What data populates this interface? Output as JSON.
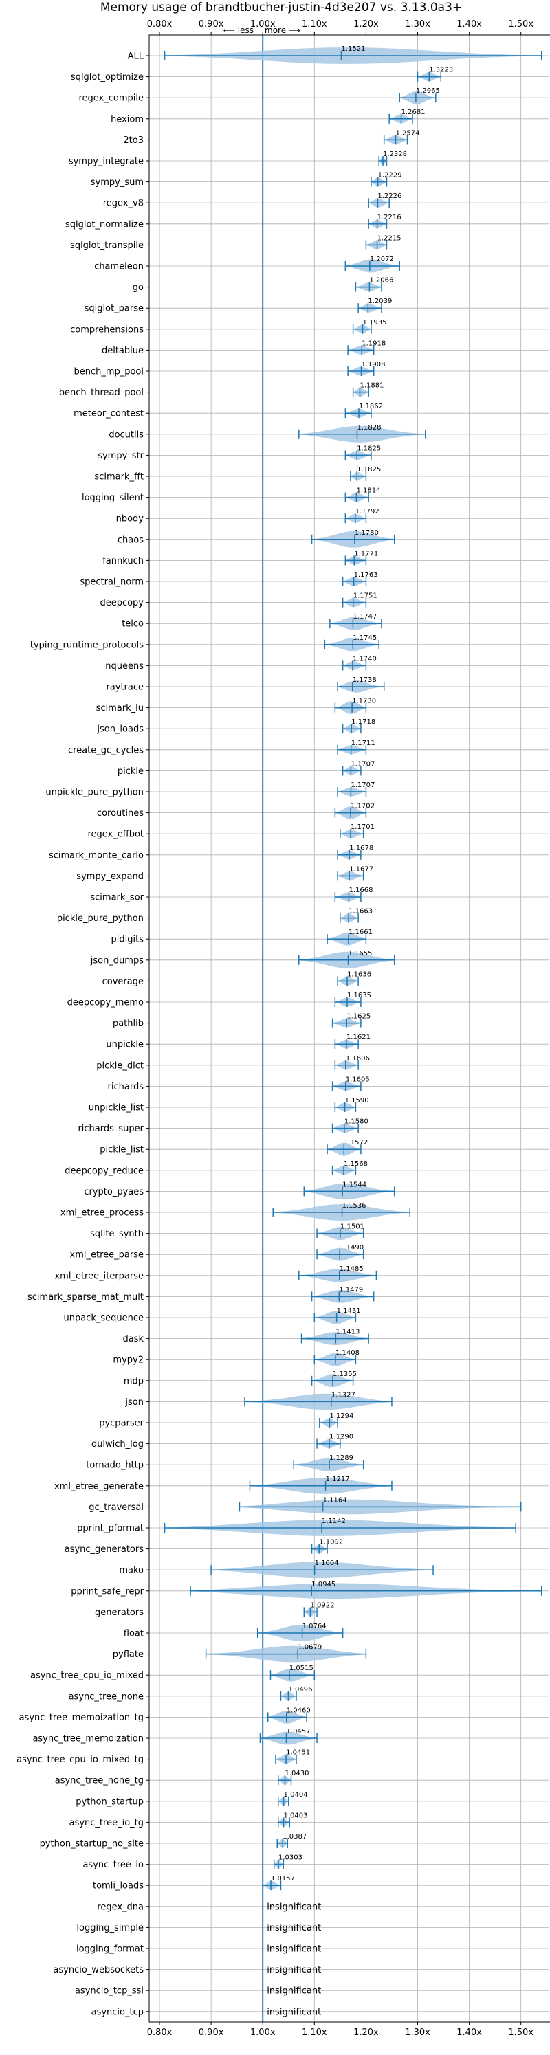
{
  "chart_data": {
    "type": "violin",
    "title": "Memory usage of brandtbucher-justin-4d3e207 vs. 3.13.0a3+",
    "direction_less": "⟵ less",
    "direction_more": "more ⟶",
    "xlim": [
      0.78,
      1.555
    ],
    "xticks": [
      0.8,
      0.9,
      1.0,
      1.1,
      1.2,
      1.3,
      1.4,
      1.5
    ],
    "xtick_labels": [
      "0.80x",
      "0.90x",
      "1.00x",
      "1.10x",
      "1.20x",
      "1.30x",
      "1.40x",
      "1.50x"
    ],
    "reference_line": 1.0,
    "grid": true,
    "insignificant_label": "insignificant",
    "colors": {
      "violin": "#a6c8e4",
      "line": "#1f77b4",
      "grid": "#b0b0b0",
      "text": "#000000"
    },
    "rows": [
      {
        "name": "ALL",
        "value": 1.1521,
        "label": "1.1521",
        "min": 0.81,
        "max": 1.54
      },
      {
        "name": "sqlglot_optimize",
        "value": 1.3223,
        "label": "1.3223",
        "min": 1.3,
        "max": 1.345
      },
      {
        "name": "regex_compile",
        "value": 1.2965,
        "label": "1.2965",
        "min": 1.265,
        "max": 1.335
      },
      {
        "name": "hexiom",
        "value": 1.2681,
        "label": "1.2681",
        "min": 1.245,
        "max": 1.29
      },
      {
        "name": "2to3",
        "value": 1.2574,
        "label": "1.2574",
        "min": 1.235,
        "max": 1.28
      },
      {
        "name": "sympy_integrate",
        "value": 1.2328,
        "label": "1.2328",
        "min": 1.225,
        "max": 1.24
      },
      {
        "name": "sympy_sum",
        "value": 1.2229,
        "label": "1.2229",
        "min": 1.21,
        "max": 1.24
      },
      {
        "name": "regex_v8",
        "value": 1.2226,
        "label": "1.2226",
        "min": 1.205,
        "max": 1.245
      },
      {
        "name": "sqlglot_normalize",
        "value": 1.2216,
        "label": "1.2216",
        "min": 1.205,
        "max": 1.24
      },
      {
        "name": "sqlglot_transpile",
        "value": 1.2215,
        "label": "1.2215",
        "min": 1.2,
        "max": 1.24
      },
      {
        "name": "chameleon",
        "value": 1.2072,
        "label": "1.2072",
        "min": 1.16,
        "max": 1.265
      },
      {
        "name": "go",
        "value": 1.2066,
        "label": "1.2066",
        "min": 1.18,
        "max": 1.23
      },
      {
        "name": "sqlglot_parse",
        "value": 1.2039,
        "label": "1.2039",
        "min": 1.185,
        "max": 1.23
      },
      {
        "name": "comprehensions",
        "value": 1.1935,
        "label": "1.1935",
        "min": 1.175,
        "max": 1.21
      },
      {
        "name": "deltablue",
        "value": 1.1918,
        "label": "1.1918",
        "min": 1.165,
        "max": 1.215
      },
      {
        "name": "bench_mp_pool",
        "value": 1.1908,
        "label": "1.1908",
        "min": 1.165,
        "max": 1.215
      },
      {
        "name": "bench_thread_pool",
        "value": 1.1881,
        "label": "1.1881",
        "min": 1.175,
        "max": 1.205
      },
      {
        "name": "meteor_contest",
        "value": 1.1862,
        "label": "1.1862",
        "min": 1.16,
        "max": 1.21
      },
      {
        "name": "docutils",
        "value": 1.1828,
        "label": "1.1828",
        "min": 1.07,
        "max": 1.315
      },
      {
        "name": "sympy_str",
        "value": 1.1825,
        "label": "1.1825",
        "min": 1.16,
        "max": 1.21
      },
      {
        "name": "scimark_fft",
        "value": 1.1825,
        "label": "1.1825",
        "min": 1.17,
        "max": 1.2
      },
      {
        "name": "logging_silent",
        "value": 1.1814,
        "label": "1.1814",
        "min": 1.16,
        "max": 1.205
      },
      {
        "name": "nbody",
        "value": 1.1792,
        "label": "1.1792",
        "min": 1.16,
        "max": 1.2
      },
      {
        "name": "chaos",
        "value": 1.178,
        "label": "1.1780",
        "min": 1.095,
        "max": 1.255
      },
      {
        "name": "fannkuch",
        "value": 1.1771,
        "label": "1.1771",
        "min": 1.16,
        "max": 1.2
      },
      {
        "name": "spectral_norm",
        "value": 1.1763,
        "label": "1.1763",
        "min": 1.155,
        "max": 1.2
      },
      {
        "name": "deepcopy",
        "value": 1.1751,
        "label": "1.1751",
        "min": 1.155,
        "max": 1.2
      },
      {
        "name": "telco",
        "value": 1.1747,
        "label": "1.1747",
        "min": 1.13,
        "max": 1.23
      },
      {
        "name": "typing_runtime_protocols",
        "value": 1.1745,
        "label": "1.1745",
        "min": 1.12,
        "max": 1.225
      },
      {
        "name": "nqueens",
        "value": 1.174,
        "label": "1.1740",
        "min": 1.155,
        "max": 1.2
      },
      {
        "name": "raytrace",
        "value": 1.1738,
        "label": "1.1738",
        "min": 1.145,
        "max": 1.235
      },
      {
        "name": "scimark_lu",
        "value": 1.173,
        "label": "1.1730",
        "min": 1.14,
        "max": 1.2
      },
      {
        "name": "json_loads",
        "value": 1.1718,
        "label": "1.1718",
        "min": 1.155,
        "max": 1.19
      },
      {
        "name": "create_gc_cycles",
        "value": 1.1711,
        "label": "1.1711",
        "min": 1.145,
        "max": 1.2
      },
      {
        "name": "pickle",
        "value": 1.1707,
        "label": "1.1707",
        "min": 1.155,
        "max": 1.19
      },
      {
        "name": "unpickle_pure_python",
        "value": 1.1707,
        "label": "1.1707",
        "min": 1.145,
        "max": 1.2
      },
      {
        "name": "coroutines",
        "value": 1.1702,
        "label": "1.1702",
        "min": 1.14,
        "max": 1.2
      },
      {
        "name": "regex_effbot",
        "value": 1.1701,
        "label": "1.1701",
        "min": 1.15,
        "max": 1.195
      },
      {
        "name": "scimark_monte_carlo",
        "value": 1.1678,
        "label": "1.1678",
        "min": 1.145,
        "max": 1.19
      },
      {
        "name": "sympy_expand",
        "value": 1.1677,
        "label": "1.1677",
        "min": 1.145,
        "max": 1.195
      },
      {
        "name": "scimark_sor",
        "value": 1.1668,
        "label": "1.1668",
        "min": 1.14,
        "max": 1.19
      },
      {
        "name": "pickle_pure_python",
        "value": 1.1663,
        "label": "1.1663",
        "min": 1.15,
        "max": 1.185
      },
      {
        "name": "pidigits",
        "value": 1.1661,
        "label": "1.1661",
        "min": 1.125,
        "max": 1.2
      },
      {
        "name": "json_dumps",
        "value": 1.1655,
        "label": "1.1655",
        "min": 1.07,
        "max": 1.255
      },
      {
        "name": "coverage",
        "value": 1.1636,
        "label": "1.1636",
        "min": 1.145,
        "max": 1.185
      },
      {
        "name": "deepcopy_memo",
        "value": 1.1635,
        "label": "1.1635",
        "min": 1.14,
        "max": 1.19
      },
      {
        "name": "pathlib",
        "value": 1.1625,
        "label": "1.1625",
        "min": 1.135,
        "max": 1.19
      },
      {
        "name": "unpickle",
        "value": 1.1621,
        "label": "1.1621",
        "min": 1.14,
        "max": 1.185
      },
      {
        "name": "pickle_dict",
        "value": 1.1606,
        "label": "1.1606",
        "min": 1.14,
        "max": 1.185
      },
      {
        "name": "richards",
        "value": 1.1605,
        "label": "1.1605",
        "min": 1.135,
        "max": 1.19
      },
      {
        "name": "unpickle_list",
        "value": 1.159,
        "label": "1.1590",
        "min": 1.14,
        "max": 1.18
      },
      {
        "name": "richards_super",
        "value": 1.158,
        "label": "1.1580",
        "min": 1.135,
        "max": 1.185
      },
      {
        "name": "pickle_list",
        "value": 1.1572,
        "label": "1.1572",
        "min": 1.125,
        "max": 1.19
      },
      {
        "name": "deepcopy_reduce",
        "value": 1.1568,
        "label": "1.1568",
        "min": 1.135,
        "max": 1.18
      },
      {
        "name": "crypto_pyaes",
        "value": 1.1544,
        "label": "1.1544",
        "min": 1.08,
        "max": 1.255
      },
      {
        "name": "xml_etree_process",
        "value": 1.1536,
        "label": "1.1536",
        "min": 1.02,
        "max": 1.285
      },
      {
        "name": "sqlite_synth",
        "value": 1.1501,
        "label": "1.1501",
        "min": 1.105,
        "max": 1.195
      },
      {
        "name": "xml_etree_parse",
        "value": 1.149,
        "label": "1.1490",
        "min": 1.105,
        "max": 1.195
      },
      {
        "name": "xml_etree_iterparse",
        "value": 1.1485,
        "label": "1.1485",
        "min": 1.07,
        "max": 1.22
      },
      {
        "name": "scimark_sparse_mat_mult",
        "value": 1.1479,
        "label": "1.1479",
        "min": 1.095,
        "max": 1.215
      },
      {
        "name": "unpack_sequence",
        "value": 1.1431,
        "label": "1.1431",
        "min": 1.1,
        "max": 1.18
      },
      {
        "name": "dask",
        "value": 1.1413,
        "label": "1.1413",
        "min": 1.075,
        "max": 1.205
      },
      {
        "name": "mypy2",
        "value": 1.1408,
        "label": "1.1408",
        "min": 1.1,
        "max": 1.18
      },
      {
        "name": "mdp",
        "value": 1.1355,
        "label": "1.1355",
        "min": 1.095,
        "max": 1.175
      },
      {
        "name": "json",
        "value": 1.1327,
        "label": "1.1327",
        "min": 0.965,
        "max": 1.25
      },
      {
        "name": "pycparser",
        "value": 1.1294,
        "label": "1.1294",
        "min": 1.11,
        "max": 1.145
      },
      {
        "name": "dulwich_log",
        "value": 1.129,
        "label": "1.1290",
        "min": 1.105,
        "max": 1.15
      },
      {
        "name": "tornado_http",
        "value": 1.1289,
        "label": "1.1289",
        "min": 1.06,
        "max": 1.195
      },
      {
        "name": "xml_etree_generate",
        "value": 1.1217,
        "label": "1.1217",
        "min": 0.975,
        "max": 1.25
      },
      {
        "name": "gc_traversal",
        "value": 1.1164,
        "label": "1.1164",
        "min": 0.955,
        "max": 1.5
      },
      {
        "name": "pprint_pformat",
        "value": 1.1142,
        "label": "1.1142",
        "min": 0.81,
        "max": 1.49
      },
      {
        "name": "async_generators",
        "value": 1.1092,
        "label": "1.1092",
        "min": 1.095,
        "max": 1.125
      },
      {
        "name": "mako",
        "value": 1.1004,
        "label": "1.1004",
        "min": 0.9,
        "max": 1.33
      },
      {
        "name": "pprint_safe_repr",
        "value": 1.0945,
        "label": "1.0945",
        "min": 0.86,
        "max": 1.54
      },
      {
        "name": "generators",
        "value": 1.0922,
        "label": "1.0922",
        "min": 1.08,
        "max": 1.105
      },
      {
        "name": "float",
        "value": 1.0764,
        "label": "1.0764",
        "min": 0.99,
        "max": 1.155
      },
      {
        "name": "pyflate",
        "value": 1.0679,
        "label": "1.0679",
        "min": 0.89,
        "max": 1.2
      },
      {
        "name": "async_tree_cpu_io_mixed",
        "value": 1.0515,
        "label": "1.0515",
        "min": 1.015,
        "max": 1.1
      },
      {
        "name": "async_tree_none",
        "value": 1.0496,
        "label": "1.0496",
        "min": 1.035,
        "max": 1.065
      },
      {
        "name": "async_tree_memoization_tg",
        "value": 1.046,
        "label": "1.0460",
        "min": 1.01,
        "max": 1.085
      },
      {
        "name": "async_tree_memoization",
        "value": 1.0457,
        "label": "1.0457",
        "min": 0.995,
        "max": 1.105
      },
      {
        "name": "async_tree_cpu_io_mixed_tg",
        "value": 1.0451,
        "label": "1.0451",
        "min": 1.025,
        "max": 1.065
      },
      {
        "name": "async_tree_none_tg",
        "value": 1.043,
        "label": "1.0430",
        "min": 1.03,
        "max": 1.055
      },
      {
        "name": "python_startup",
        "value": 1.0404,
        "label": "1.0404",
        "min": 1.03,
        "max": 1.05
      },
      {
        "name": "async_tree_io_tg",
        "value": 1.0403,
        "label": "1.0403",
        "min": 1.03,
        "max": 1.052
      },
      {
        "name": "python_startup_no_site",
        "value": 1.0387,
        "label": "1.0387",
        "min": 1.028,
        "max": 1.048
      },
      {
        "name": "async_tree_io",
        "value": 1.0303,
        "label": "1.0303",
        "min": 1.022,
        "max": 1.04
      },
      {
        "name": "tomli_loads",
        "value": 1.0157,
        "label": "1.0157",
        "min": 1.0,
        "max": 1.035
      },
      {
        "name": "regex_dna",
        "value": null,
        "label": "insignificant"
      },
      {
        "name": "logging_simple",
        "value": null,
        "label": "insignificant"
      },
      {
        "name": "logging_format",
        "value": null,
        "label": "insignificant"
      },
      {
        "name": "asyncio_websockets",
        "value": null,
        "label": "insignificant"
      },
      {
        "name": "asyncio_tcp_ssl",
        "value": null,
        "label": "insignificant"
      },
      {
        "name": "asyncio_tcp",
        "value": null,
        "label": "insignificant"
      }
    ]
  }
}
